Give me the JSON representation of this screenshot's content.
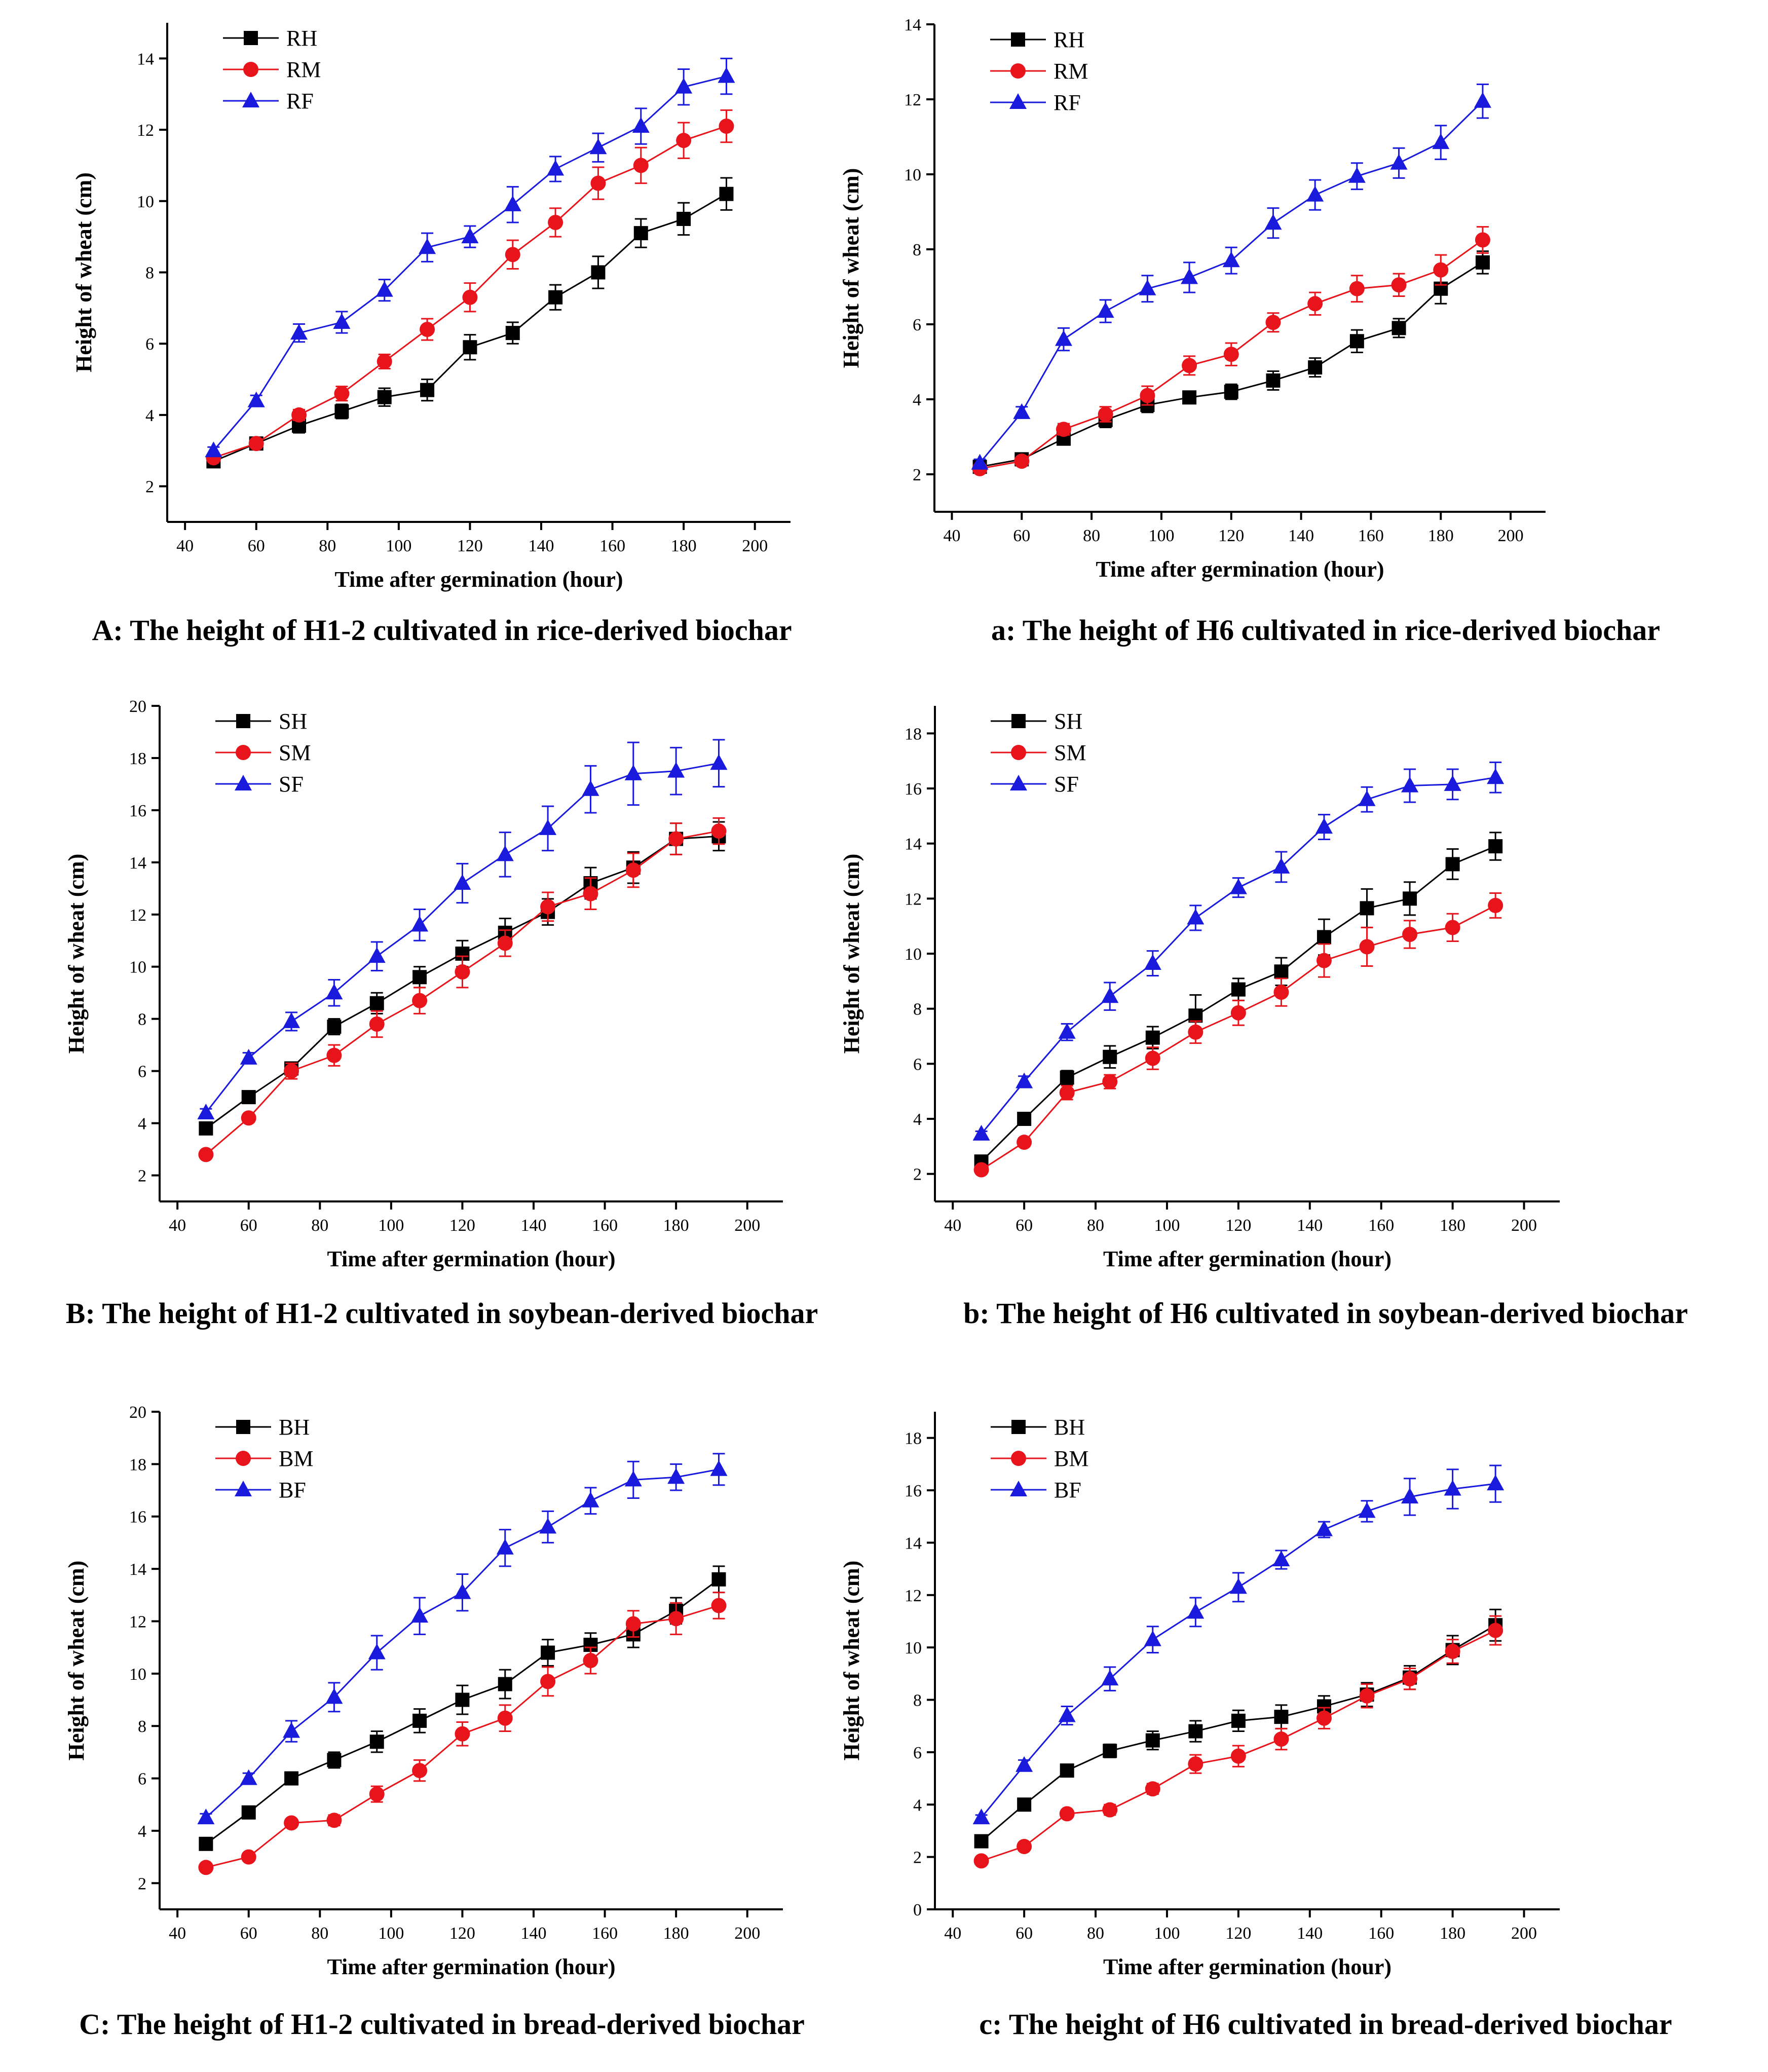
{
  "colors": {
    "H": "#000000",
    "M": "#e8141b",
    "F": "#1a1adc"
  },
  "panels": [
    {
      "caption": "A: The height of H1-2 cultivated in rice-derived biochar",
      "chart_data": {
        "type": "line",
        "xlabel": "Time after germination (hour)",
        "ylabel": "Height of wheat (cm)",
        "xlim": [
          35,
          210
        ],
        "xticks": [
          40,
          60,
          80,
          100,
          120,
          140,
          160,
          180,
          200
        ],
        "ylim": [
          1,
          15
        ],
        "yticks": [
          2,
          4,
          6,
          8,
          10,
          12,
          14
        ],
        "legend_position": "top-left",
        "x": [
          48,
          60,
          72,
          84,
          96,
          108,
          120,
          132,
          144,
          156,
          168,
          180,
          192
        ],
        "series": [
          {
            "name": "RH",
            "marker": "square",
            "color": "#000000",
            "values": [
              2.7,
              3.2,
              3.7,
              4.1,
              4.5,
              4.7,
              5.9,
              6.3,
              7.3,
              8.0,
              9.1,
              9.5,
              10.2
            ],
            "errors": [
              0.1,
              0.1,
              0.2,
              0.2,
              0.25,
              0.3,
              0.35,
              0.3,
              0.35,
              0.45,
              0.4,
              0.45,
              0.45
            ]
          },
          {
            "name": "RM",
            "marker": "circle",
            "color": "#e8141b",
            "values": [
              2.8,
              3.2,
              4.0,
              4.6,
              5.5,
              6.4,
              7.3,
              8.5,
              9.4,
              10.5,
              11.0,
              11.7,
              12.1
            ],
            "errors": [
              0.1,
              0.1,
              0.15,
              0.2,
              0.2,
              0.3,
              0.4,
              0.4,
              0.4,
              0.45,
              0.5,
              0.5,
              0.45
            ]
          },
          {
            "name": "RF",
            "marker": "triangle",
            "color": "#1a1adc",
            "values": [
              3.0,
              4.4,
              6.3,
              6.6,
              7.5,
              8.7,
              9.0,
              9.9,
              10.9,
              11.5,
              12.1,
              13.2,
              13.5
            ],
            "errors": [
              0.1,
              0.15,
              0.25,
              0.3,
              0.3,
              0.4,
              0.3,
              0.5,
              0.35,
              0.4,
              0.5,
              0.5,
              0.5
            ]
          }
        ]
      }
    },
    {
      "caption": "a: The height of H6 cultivated in rice-derived biochar",
      "chart_data": {
        "type": "line",
        "xlabel": "Time after germination (hour)",
        "ylabel": "Height of wheat (cm)",
        "xlim": [
          35,
          210
        ],
        "xticks": [
          40,
          60,
          80,
          100,
          120,
          140,
          160,
          180,
          200
        ],
        "ylim": [
          1,
          14
        ],
        "yticks": [
          2,
          4,
          6,
          8,
          10,
          12,
          14
        ],
        "legend_position": "top-left",
        "x": [
          48,
          60,
          72,
          84,
          96,
          108,
          120,
          132,
          144,
          156,
          168,
          180,
          192
        ],
        "series": [
          {
            "name": "RH",
            "marker": "square",
            "color": "#000000",
            "values": [
              2.2,
              2.4,
              2.95,
              3.45,
              3.85,
              4.05,
              4.2,
              4.5,
              4.85,
              5.55,
              5.9,
              6.95,
              7.65
            ],
            "errors": [
              0.1,
              0.1,
              0.15,
              0.2,
              0.2,
              0.15,
              0.2,
              0.25,
              0.25,
              0.3,
              0.25,
              0.4,
              0.3
            ]
          },
          {
            "name": "RM",
            "marker": "circle",
            "color": "#e8141b",
            "values": [
              2.15,
              2.35,
              3.2,
              3.6,
              4.1,
              4.9,
              5.2,
              6.05,
              6.55,
              6.95,
              7.05,
              7.45,
              8.25
            ],
            "errors": [
              0.1,
              0.1,
              0.15,
              0.2,
              0.25,
              0.25,
              0.3,
              0.25,
              0.3,
              0.35,
              0.3,
              0.4,
              0.35
            ]
          },
          {
            "name": "RF",
            "marker": "triangle",
            "color": "#1a1adc",
            "values": [
              2.3,
              3.65,
              5.6,
              6.35,
              6.95,
              7.25,
              7.7,
              8.7,
              9.45,
              9.95,
              10.3,
              10.85,
              11.95
            ],
            "errors": [
              0.1,
              0.15,
              0.3,
              0.3,
              0.35,
              0.4,
              0.35,
              0.4,
              0.4,
              0.35,
              0.4,
              0.45,
              0.45
            ]
          }
        ]
      }
    },
    {
      "caption": "B: The height of H1-2 cultivated in soybean-derived biochar",
      "chart_data": {
        "type": "line",
        "xlabel": "Time after germination (hour)",
        "ylabel": "Height of wheat (cm)",
        "xlim": [
          35,
          210
        ],
        "xticks": [
          40,
          60,
          80,
          100,
          120,
          140,
          160,
          180,
          200
        ],
        "ylim": [
          1,
          20
        ],
        "yticks": [
          2,
          4,
          6,
          8,
          10,
          12,
          14,
          16,
          18,
          20
        ],
        "legend_position": "top-left",
        "x": [
          48,
          60,
          72,
          84,
          96,
          108,
          120,
          132,
          144,
          156,
          168,
          180,
          192
        ],
        "series": [
          {
            "name": "SH",
            "marker": "square",
            "color": "#000000",
            "values": [
              3.8,
              5.0,
              6.1,
              7.7,
              8.6,
              9.6,
              10.5,
              11.3,
              12.1,
              13.2,
              13.8,
              14.9,
              15.0
            ],
            "errors": [
              0.15,
              0.2,
              0.2,
              0.3,
              0.4,
              0.4,
              0.5,
              0.55,
              0.5,
              0.6,
              0.6,
              0.6,
              0.55
            ]
          },
          {
            "name": "SM",
            "marker": "circle",
            "color": "#e8141b",
            "values": [
              2.8,
              4.2,
              6.0,
              6.6,
              7.8,
              8.7,
              9.8,
              10.9,
              12.3,
              12.8,
              13.7,
              14.9,
              15.2
            ],
            "errors": [
              0.1,
              0.15,
              0.3,
              0.4,
              0.5,
              0.5,
              0.6,
              0.5,
              0.55,
              0.6,
              0.65,
              0.6,
              0.5
            ]
          },
          {
            "name": "SF",
            "marker": "triangle",
            "color": "#1a1adc",
            "values": [
              4.4,
              6.5,
              7.9,
              9.0,
              10.4,
              11.6,
              13.2,
              14.3,
              15.3,
              16.8,
              17.4,
              17.5,
              17.8
            ],
            "errors": [
              0.15,
              0.2,
              0.35,
              0.5,
              0.55,
              0.6,
              0.75,
              0.85,
              0.85,
              0.9,
              1.2,
              0.9,
              0.9
            ]
          }
        ]
      }
    },
    {
      "caption": "b: The height of H6 cultivated in soybean-derived biochar",
      "chart_data": {
        "type": "line",
        "xlabel": "Time after germination (hour)",
        "ylabel": "Height of wheat (cm)",
        "xlim": [
          35,
          210
        ],
        "xticks": [
          40,
          60,
          80,
          100,
          120,
          140,
          160,
          180,
          200
        ],
        "ylim": [
          1,
          19
        ],
        "yticks": [
          2,
          4,
          6,
          8,
          10,
          12,
          14,
          16,
          18
        ],
        "legend_position": "top-left",
        "x": [
          48,
          60,
          72,
          84,
          96,
          108,
          120,
          132,
          144,
          156,
          168,
          180,
          192
        ],
        "series": [
          {
            "name": "SH",
            "marker": "square",
            "color": "#000000",
            "values": [
              2.45,
              4.0,
              5.5,
              6.25,
              6.95,
              7.75,
              8.7,
              9.35,
              10.6,
              11.65,
              12.0,
              13.25,
              13.9
            ],
            "errors": [
              0.1,
              0.15,
              0.25,
              0.4,
              0.4,
              0.75,
              0.4,
              0.5,
              0.65,
              0.7,
              0.6,
              0.55,
              0.5
            ]
          },
          {
            "name": "SM",
            "marker": "circle",
            "color": "#e8141b",
            "values": [
              2.15,
              3.15,
              4.95,
              5.35,
              6.2,
              7.15,
              7.85,
              8.6,
              9.75,
              10.25,
              10.7,
              10.95,
              11.75
            ],
            "errors": [
              0.1,
              0.15,
              0.25,
              0.25,
              0.4,
              0.4,
              0.45,
              0.5,
              0.6,
              0.7,
              0.5,
              0.5,
              0.45
            ]
          },
          {
            "name": "SF",
            "marker": "triangle",
            "color": "#1a1adc",
            "values": [
              3.45,
              5.35,
              7.15,
              8.45,
              9.65,
              11.3,
              12.4,
              13.15,
              14.6,
              15.6,
              16.1,
              16.15,
              16.4
            ],
            "errors": [
              0.1,
              0.2,
              0.3,
              0.5,
              0.45,
              0.45,
              0.35,
              0.55,
              0.45,
              0.45,
              0.6,
              0.55,
              0.55
            ]
          }
        ]
      }
    },
    {
      "caption": "C: The height of H1-2 cultivated in bread-derived biochar",
      "chart_data": {
        "type": "line",
        "xlabel": "Time after germination (hour)",
        "ylabel": "Height of wheat (cm)",
        "xlim": [
          35,
          210
        ],
        "xticks": [
          40,
          60,
          80,
          100,
          120,
          140,
          160,
          180,
          200
        ],
        "ylim": [
          1,
          20
        ],
        "yticks": [
          2,
          4,
          6,
          8,
          10,
          12,
          14,
          16,
          18,
          20
        ],
        "legend_position": "top-left",
        "x": [
          48,
          60,
          72,
          84,
          96,
          108,
          120,
          132,
          144,
          156,
          168,
          180,
          192
        ],
        "series": [
          {
            "name": "BH",
            "marker": "square",
            "color": "#000000",
            "values": [
              3.5,
              4.7,
              6.0,
              6.7,
              7.4,
              8.2,
              9.0,
              9.6,
              10.8,
              11.1,
              11.5,
              12.4,
              13.6
            ],
            "errors": [
              0.1,
              0.15,
              0.2,
              0.3,
              0.4,
              0.45,
              0.55,
              0.55,
              0.5,
              0.45,
              0.5,
              0.5,
              0.5
            ]
          },
          {
            "name": "BM",
            "marker": "circle",
            "color": "#e8141b",
            "values": [
              2.6,
              3.0,
              4.3,
              4.4,
              5.4,
              6.3,
              7.7,
              8.3,
              9.7,
              10.5,
              11.9,
              12.1,
              12.6
            ],
            "errors": [
              0.1,
              0.1,
              0.15,
              0.2,
              0.3,
              0.4,
              0.45,
              0.5,
              0.55,
              0.5,
              0.5,
              0.6,
              0.5
            ]
          },
          {
            "name": "BF",
            "marker": "triangle",
            "color": "#1a1adc",
            "values": [
              4.5,
              6.0,
              7.8,
              9.1,
              10.8,
              12.2,
              13.1,
              14.8,
              15.6,
              16.6,
              17.4,
              17.5,
              17.8
            ],
            "errors": [
              0.15,
              0.2,
              0.4,
              0.55,
              0.65,
              0.7,
              0.7,
              0.7,
              0.6,
              0.5,
              0.7,
              0.5,
              0.6
            ]
          }
        ]
      }
    },
    {
      "caption": "c: The height of H6 cultivated in bread-derived biochar",
      "chart_data": {
        "type": "line",
        "xlabel": "Time after germination (hour)",
        "ylabel": "Height of wheat (cm)",
        "xlim": [
          35,
          210
        ],
        "xticks": [
          40,
          60,
          80,
          100,
          120,
          140,
          160,
          180,
          200
        ],
        "ylim": [
          0,
          19
        ],
        "yticks": [
          0,
          2,
          4,
          6,
          8,
          10,
          12,
          14,
          16,
          18
        ],
        "legend_position": "top-left",
        "x": [
          48,
          60,
          72,
          84,
          96,
          108,
          120,
          132,
          144,
          156,
          168,
          180,
          192
        ],
        "series": [
          {
            "name": "BH",
            "marker": "square",
            "color": "#000000",
            "values": [
              2.6,
              4.0,
              5.3,
              6.05,
              6.45,
              6.8,
              7.2,
              7.35,
              7.75,
              8.2,
              8.85,
              9.9,
              10.85
            ],
            "errors": [
              0.1,
              0.1,
              0.15,
              0.25,
              0.35,
              0.4,
              0.4,
              0.45,
              0.4,
              0.45,
              0.45,
              0.55,
              0.6
            ]
          },
          {
            "name": "BM",
            "marker": "circle",
            "color": "#e8141b",
            "values": [
              1.85,
              2.4,
              3.65,
              3.8,
              4.6,
              5.55,
              5.85,
              6.5,
              7.3,
              8.15,
              8.8,
              9.85,
              10.65
            ],
            "errors": [
              0.1,
              0.1,
              0.15,
              0.2,
              0.2,
              0.35,
              0.4,
              0.4,
              0.4,
              0.45,
              0.4,
              0.45,
              0.55
            ]
          },
          {
            "name": "BF",
            "marker": "triangle",
            "color": "#1a1adc",
            "values": [
              3.5,
              5.5,
              7.4,
              8.8,
              10.3,
              11.35,
              12.3,
              13.35,
              14.5,
              15.2,
              15.75,
              16.05,
              16.25
            ],
            "errors": [
              0.1,
              0.2,
              0.35,
              0.45,
              0.5,
              0.55,
              0.55,
              0.35,
              0.3,
              0.4,
              0.7,
              0.75,
              0.7
            ]
          }
        ]
      }
    }
  ]
}
